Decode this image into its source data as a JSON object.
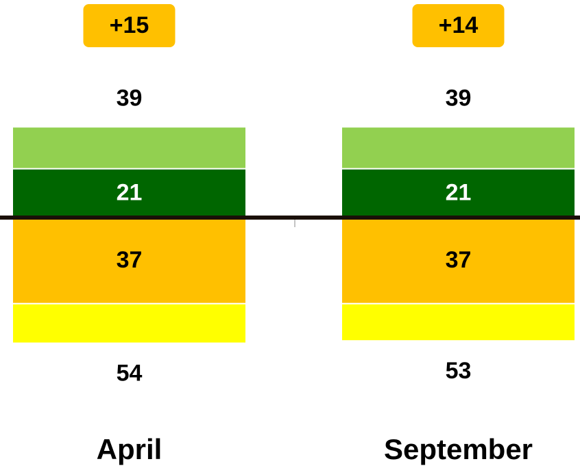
{
  "chart_data": {
    "type": "diverging_stacked_bar",
    "categories": [
      "April",
      "September"
    ],
    "series": [
      {
        "color": "#006600",
        "side": "above",
        "labels": true,
        "label_color": "#ffffff",
        "values": [
          21,
          21
        ]
      },
      {
        "color": "#92d050",
        "side": "above",
        "labels": false,
        "values": [
          18,
          18
        ]
      },
      {
        "color": "#ffc000",
        "side": "below",
        "labels": true,
        "label_color": "#000000",
        "values": [
          37,
          37
        ]
      },
      {
        "color": "#ffff00",
        "side": "below",
        "labels": false,
        "values": [
          17,
          16
        ]
      }
    ],
    "totals_above": [
      39,
      39
    ],
    "totals_below": [
      54,
      53
    ],
    "net": [
      15,
      14
    ],
    "net_labels": [
      "+15",
      "+14"
    ],
    "net_color": "#ffc000"
  }
}
